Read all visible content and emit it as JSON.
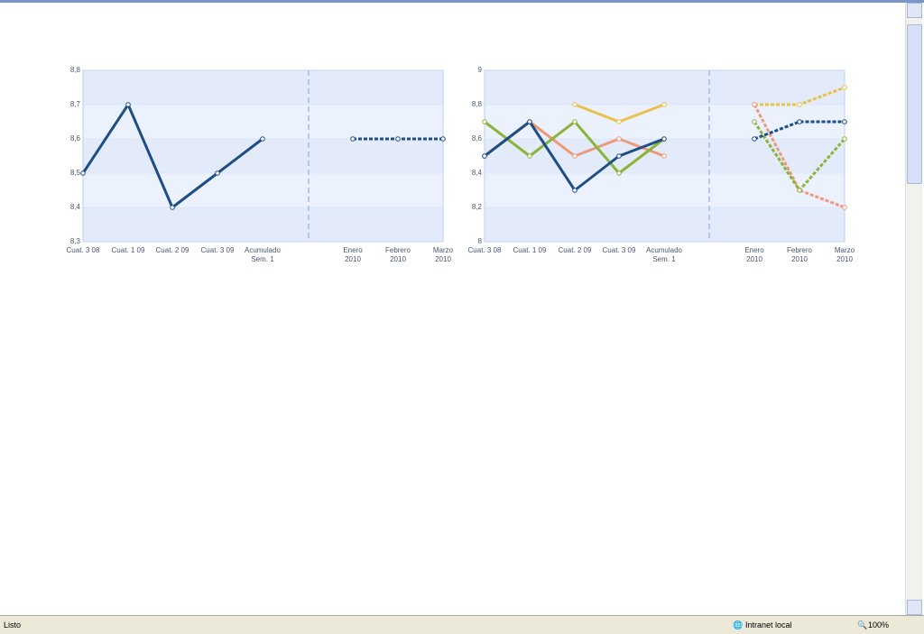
{
  "chart_data": [
    {
      "type": "line",
      "categories": [
        "Cuat. 3 08",
        "Cuat. 1 09",
        "Cuat. 2 09",
        "Cuat. 3 09",
        "Acumulado\nSem. 1",
        "Enero\n2010",
        "Febrero\n2010",
        "Marzo\n2010"
      ],
      "ylim": [
        8.3,
        8.8
      ],
      "yticks": [
        {
          "value": 8.3,
          "label": "8,3"
        },
        {
          "value": 8.4,
          "label": "8,4"
        },
        {
          "value": 8.5,
          "label": "8,5"
        },
        {
          "value": 8.6,
          "label": "8,6"
        },
        {
          "value": 8.7,
          "label": "8,7"
        },
        {
          "value": 8.8,
          "label": "8,8"
        }
      ],
      "series": [
        {
          "color": "#1f4e85",
          "values": [
            8.5,
            8.7,
            8.4,
            8.5,
            8.6,
            null,
            null,
            null
          ]
        },
        {
          "color": "#1f4e85",
          "dashed": true,
          "values": [
            null,
            null,
            null,
            null,
            null,
            8.6,
            8.6,
            8.6
          ]
        }
      ]
    },
    {
      "type": "line",
      "categories": [
        "Cuat. 3 08",
        "Cuat. 1 09",
        "Cuat. 2 09",
        "Cuat. 3 09",
        "Acumulado\nSem. 1",
        "Enero\n2010",
        "Febrero\n2010",
        "Marzo\n2010"
      ],
      "ylim": [
        8,
        9
      ],
      "yticks": [
        8,
        {
          "value": 8.2,
          "label": "8,2"
        },
        {
          "value": 8.4,
          "label": "8,4"
        },
        {
          "value": 8.6,
          "label": "8,6"
        },
        {
          "value": 8.8,
          "label": "8,8"
        },
        9
      ],
      "series": [
        {
          "color": "#e8c24a",
          "values": [
            null,
            null,
            8.8,
            8.7,
            8.8,
            null,
            null,
            null
          ]
        },
        {
          "color": "#ec9a7a",
          "values": [
            8.5,
            8.7,
            8.5,
            8.6,
            8.5,
            null,
            null,
            null
          ]
        },
        {
          "color": "#8cb33a",
          "values": [
            8.7,
            8.5,
            8.7,
            8.4,
            8.6,
            null,
            null,
            null
          ]
        },
        {
          "color": "#1f4e85",
          "values": [
            8.5,
            8.7,
            8.3,
            8.5,
            8.6,
            null,
            null,
            null
          ]
        },
        {
          "color": "#e8c24a",
          "dashed": true,
          "values": [
            null,
            null,
            null,
            null,
            null,
            8.8,
            8.8,
            8.9
          ]
        },
        {
          "color": "#ec9a7a",
          "dashed": true,
          "values": [
            null,
            null,
            null,
            null,
            null,
            8.8,
            8.3,
            8.2
          ]
        },
        {
          "color": "#8cb33a",
          "dashed": true,
          "values": [
            null,
            null,
            null,
            null,
            null,
            8.7,
            8.3,
            8.6
          ]
        },
        {
          "color": "#1f4e85",
          "dashed": true,
          "values": [
            null,
            null,
            null,
            null,
            null,
            8.6,
            8.7,
            8.7
          ]
        }
      ]
    }
  ],
  "status_bar": {
    "status": "Listo",
    "zone": "Intranet local",
    "zoom": "100%"
  }
}
